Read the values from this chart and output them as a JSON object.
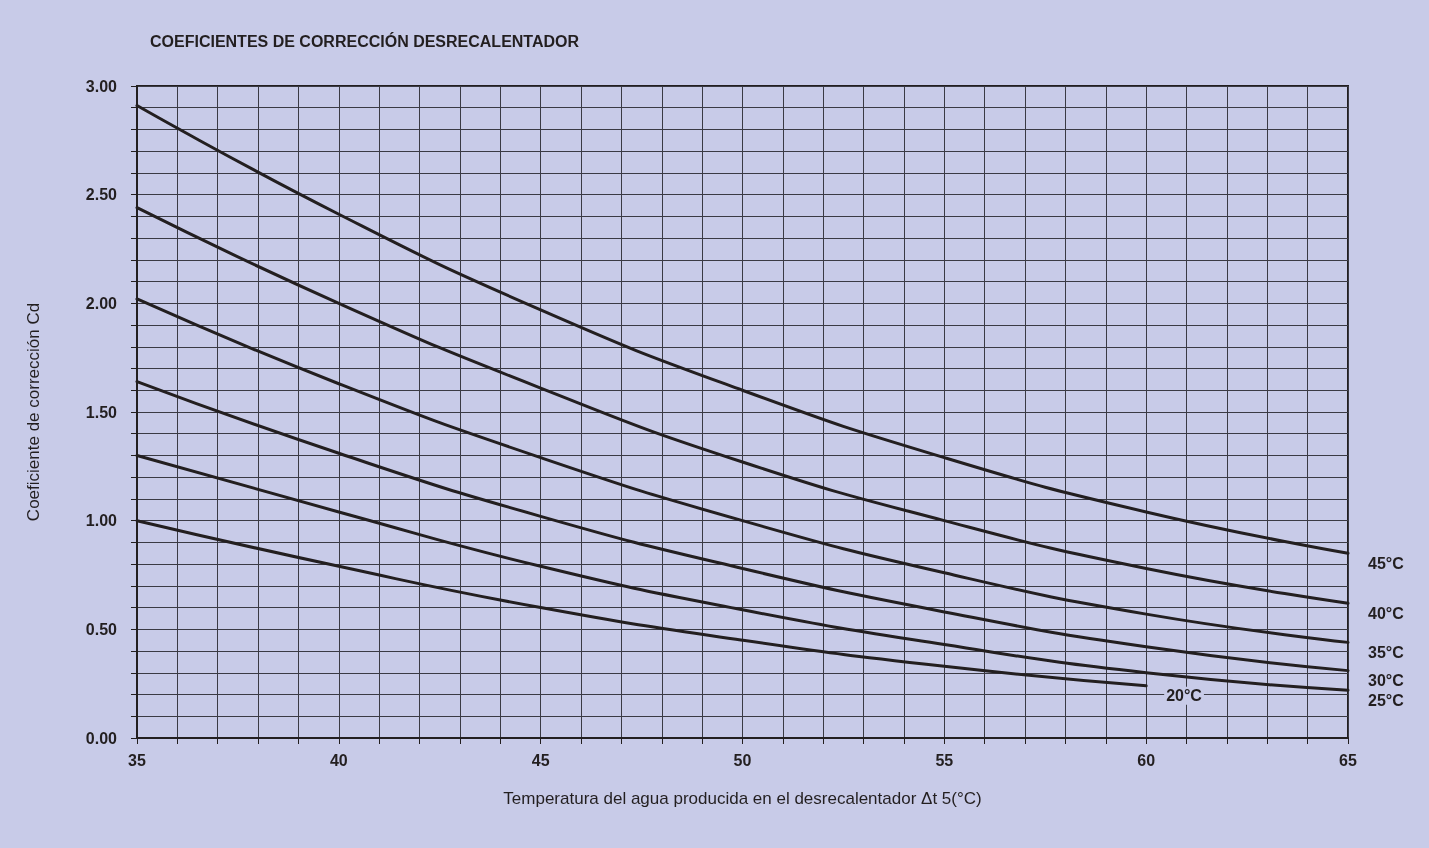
{
  "chart_data": {
    "type": "line",
    "title": "COEFICIENTES DE CORRECCIÓN DESRECALENTADOR",
    "xlabel": "Temperatura del agua producida en el desrecalentador Δt 5(°C)",
    "ylabel": "Coeficiente de corrección Cd",
    "x": [
      35,
      40,
      45,
      50,
      55,
      60,
      65
    ],
    "series": [
      {
        "name": "45°C",
        "color": "#231f20",
        "values": [
          2.91,
          2.41,
          1.97,
          1.6,
          1.29,
          1.04,
          0.85
        ]
      },
      {
        "name": "40°C",
        "color": "#231f20",
        "values": [
          2.44,
          2.0,
          1.61,
          1.27,
          1.0,
          0.78,
          0.62
        ]
      },
      {
        "name": "35°C",
        "color": "#231f20",
        "values": [
          2.02,
          1.63,
          1.29,
          1.0,
          0.76,
          0.57,
          0.44
        ]
      },
      {
        "name": "30°C",
        "color": "#231f20",
        "values": [
          1.64,
          1.31,
          1.02,
          0.78,
          0.58,
          0.42,
          0.31
        ]
      },
      {
        "name": "25°C",
        "color": "#231f20",
        "values": [
          1.3,
          1.04,
          0.79,
          0.59,
          0.43,
          0.3,
          0.22
        ]
      },
      {
        "name": "20°C",
        "color": "#231f20",
        "values": [
          1.0,
          0.79,
          0.6,
          0.45,
          0.33,
          0.24,
          null
        ]
      }
    ],
    "xlim": [
      35,
      65
    ],
    "xticks": [
      35,
      {
        "value": 36,
        "label": null
      },
      {
        "value": 37,
        "label": null
      },
      {
        "value": 38,
        "label": null
      },
      {
        "value": 39,
        "label": null
      },
      40,
      {
        "value": 41,
        "label": null
      },
      {
        "value": 42,
        "label": null
      },
      {
        "value": 43,
        "label": null
      },
      {
        "value": 44,
        "label": null
      },
      45,
      {
        "value": 46,
        "label": null
      },
      {
        "value": 47,
        "label": null
      },
      {
        "value": 48,
        "label": null
      },
      {
        "value": 49,
        "label": null
      },
      50,
      {
        "value": 51,
        "label": null
      },
      {
        "value": 52,
        "label": null
      },
      {
        "value": 53,
        "label": null
      },
      {
        "value": 54,
        "label": null
      },
      55,
      {
        "value": 56,
        "label": null
      },
      {
        "value": 57,
        "label": null
      },
      {
        "value": 58,
        "label": null
      },
      {
        "value": 59,
        "label": null
      },
      60,
      {
        "value": 61,
        "label": null
      },
      {
        "value": 62,
        "label": null
      },
      {
        "value": 63,
        "label": null
      },
      {
        "value": 64,
        "label": null
      },
      65
    ],
    "ylim": [
      0,
      3
    ],
    "yticks": [
      {
        "value": 0,
        "label": "0.00"
      },
      {
        "value": 0.1,
        "label": null
      },
      {
        "value": 0.2,
        "label": null
      },
      {
        "value": 0.3,
        "label": null
      },
      {
        "value": 0.4,
        "label": null
      },
      {
        "value": 0.5,
        "label": "0.50"
      },
      {
        "value": 0.6,
        "label": null
      },
      {
        "value": 0.7,
        "label": null
      },
      {
        "value": 0.8,
        "label": null
      },
      {
        "value": 0.9,
        "label": null
      },
      {
        "value": 1,
        "label": "1.00"
      },
      {
        "value": 1.1,
        "label": null
      },
      {
        "value": 1.2,
        "label": null
      },
      {
        "value": 1.3,
        "label": null
      },
      {
        "value": 1.4,
        "label": null
      },
      {
        "value": 1.5,
        "label": "1.50"
      },
      {
        "value": 1.6,
        "label": null
      },
      {
        "value": 1.7,
        "label": null
      },
      {
        "value": 1.8,
        "label": null
      },
      {
        "value": 1.9,
        "label": null
      },
      {
        "value": 2,
        "label": "2.00"
      },
      {
        "value": 2.1,
        "label": null
      },
      {
        "value": 2.2,
        "label": null
      },
      {
        "value": 2.3,
        "label": null
      },
      {
        "value": 2.4,
        "label": null
      },
      {
        "value": 2.5,
        "label": "2.50"
      },
      {
        "value": 2.6,
        "label": null
      },
      {
        "value": 2.7,
        "label": null
      },
      {
        "value": 2.8,
        "label": null
      },
      {
        "value": 2.9,
        "label": null
      },
      {
        "value": 3,
        "label": "3.00"
      }
    ],
    "grid": true,
    "legend": false,
    "marker": "none",
    "line_style": "solid"
  }
}
